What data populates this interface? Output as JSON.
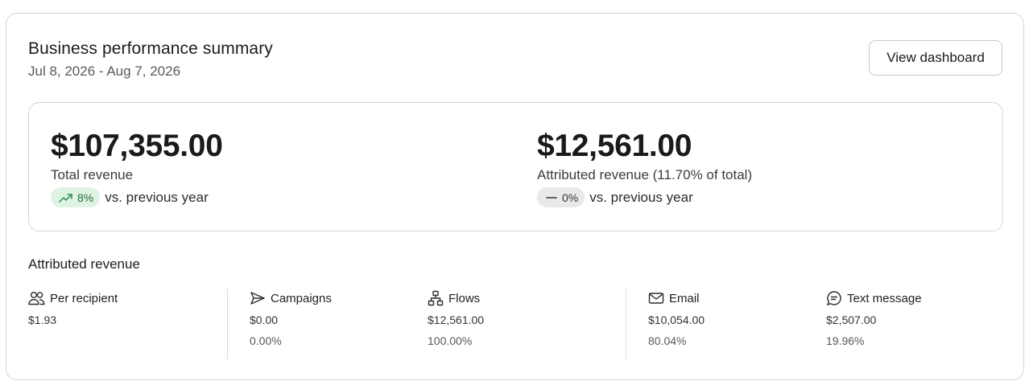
{
  "header": {
    "title": "Business performance summary",
    "date_range": "Jul 8, 2026 - Aug 7, 2026",
    "view_button": "View dashboard"
  },
  "summary": {
    "total": {
      "value": "$107,355.00",
      "label": "Total revenue",
      "change": "8%",
      "change_direction": "up",
      "compare_text": "vs. previous year",
      "pill_color": "#dff3e4"
    },
    "attributed": {
      "value": "$12,561.00",
      "label": "Attributed revenue (11.70% of total)",
      "change": "0%",
      "change_direction": "flat",
      "compare_text": "vs. previous year",
      "pill_color": "#e8e9ea"
    }
  },
  "attributed_section": {
    "title": "Attributed revenue",
    "stats": [
      {
        "icon": "people-icon",
        "label": "Per recipient",
        "value": "$1.93",
        "percent": ""
      },
      {
        "icon": "send-icon",
        "label": "Campaigns",
        "value": "$0.00",
        "percent": "0.00%"
      },
      {
        "icon": "flow-icon",
        "label": "Flows",
        "value": "$12,561.00",
        "percent": "100.00%"
      },
      {
        "icon": "mail-icon",
        "label": "Email",
        "value": "$10,054.00",
        "percent": "80.04%"
      },
      {
        "icon": "chat-icon",
        "label": "Text message",
        "value": "$2,507.00",
        "percent": "19.96%"
      }
    ]
  }
}
